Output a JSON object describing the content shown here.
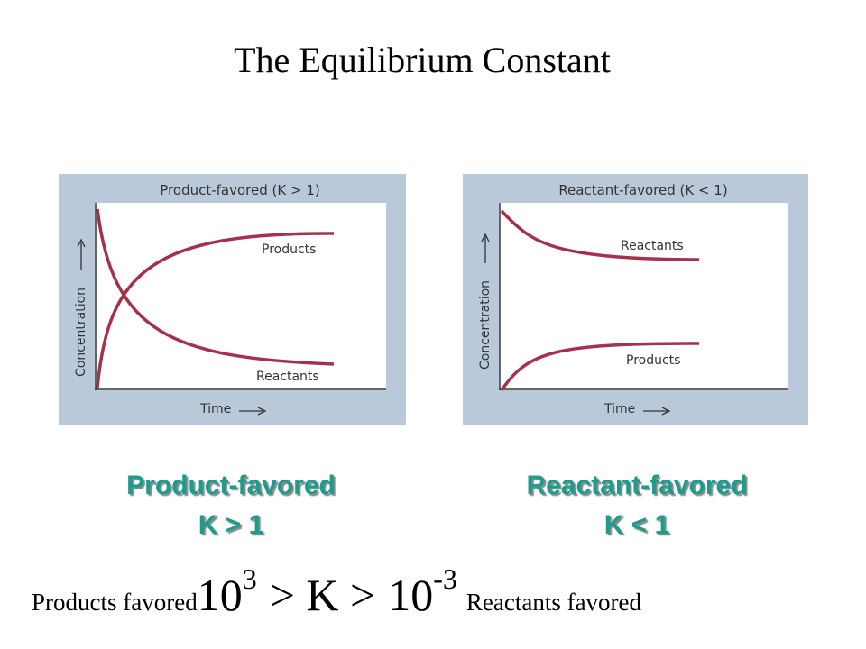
{
  "title": "The Equilibrium Constant",
  "panels": [
    {
      "title": "Product-favored (K > 1)",
      "y_axis": "Concentration",
      "x_axis": "Time",
      "curves": [
        "Products",
        "Reactants"
      ],
      "caption": "Product-favored",
      "condition": "K > 1"
    },
    {
      "title": "Reactant-favored (K < 1)",
      "y_axis": "Concentration",
      "x_axis": "Time",
      "curves": [
        "Reactants",
        "Products"
      ],
      "caption": "Reactant-favored",
      "condition": "K < 1"
    }
  ],
  "footer": {
    "left": "Products favored",
    "base_high": "10",
    "exp_high": "3",
    "relation": "> K >",
    "base_low": "10",
    "exp_low": "-3",
    "right": "Reactants favored"
  }
}
